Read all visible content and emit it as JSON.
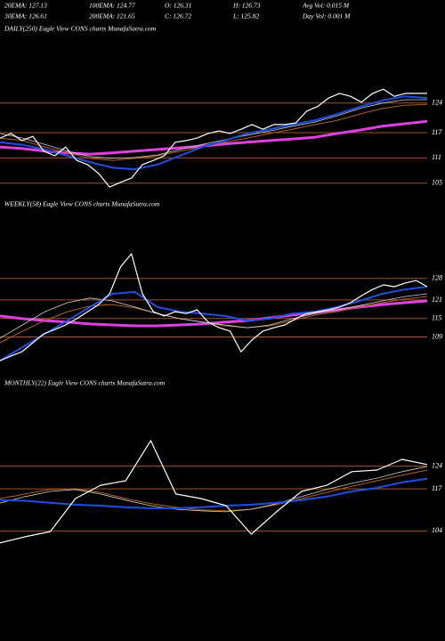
{
  "header": {
    "stats": [
      "20EMA: 127.13",
      "100EMA: 124.77",
      "O: 126.31",
      "H: 126.73",
      "Avg Vol: 0.015 M",
      "30EMA: 126.61",
      "200EMA: 121.65",
      "C: 126.72",
      "L: 125.82",
      "Day Vol: 0.001 M"
    ]
  },
  "chart_data": [
    {
      "type": "line",
      "title": "DAILY(250) Eagle  View  CONS charts MunafaSutra.com",
      "ylim": [
        102,
        140
      ],
      "yticks": [
        124,
        117,
        111,
        105
      ],
      "series": [
        {
          "color": "#e040e0",
          "values": [
            113.6,
            113.2,
            112.6,
            112.2,
            111.9,
            112.2,
            112.6,
            113.0,
            113.4,
            113.8,
            114.3,
            114.7,
            115.1,
            115.5,
            115.9,
            116.8,
            117.6,
            118.5,
            119.1,
            119.7
          ]
        },
        {
          "color": "#b06020",
          "values": [
            115.7,
            115.1,
            113.6,
            112.2,
            110.9,
            110.4,
            110.9,
            111.5,
            112.6,
            113.6,
            114.7,
            115.7,
            116.8,
            117.8,
            118.9,
            119.9,
            121.4,
            122.7,
            123.5,
            123.7
          ]
        },
        {
          "color": "#cccccc",
          "values": [
            116.8,
            115.7,
            114.2,
            112.6,
            111.3,
            110.9,
            111.1,
            111.7,
            113.0,
            114.2,
            115.3,
            116.4,
            117.4,
            118.5,
            119.5,
            121.0,
            122.7,
            124.0,
            124.8,
            124.8
          ]
        },
        {
          "color": "#1f4fe0",
          "values": [
            114.7,
            114.1,
            113.0,
            111.5,
            110.0,
            108.7,
            108.3,
            109.4,
            111.5,
            113.6,
            115.1,
            116.8,
            117.8,
            118.9,
            119.9,
            121.4,
            123.1,
            124.6,
            125.6,
            125.2
          ]
        },
        {
          "color": "#ffffff",
          "values": [
            115.7,
            116.8,
            115.1,
            116.1,
            112.6,
            111.5,
            113.6,
            110.4,
            109.4,
            107.3,
            104.1,
            105.2,
            106.2,
            109.4,
            110.4,
            111.5,
            114.7,
            115.1,
            115.7,
            116.8,
            117.4,
            116.8,
            117.8,
            118.9,
            117.8,
            118.9,
            118.9,
            119.3,
            122.1,
            123.2,
            125.2,
            126.3,
            125.6,
            124.2,
            126.3,
            127.3,
            125.6,
            126.3,
            126.3,
            126.3
          ]
        }
      ]
    },
    {
      "type": "line",
      "title": "WEEKLY(58) Eagle  View  CONS charts MunafaSutra.com",
      "ylim": [
        97,
        149
      ],
      "yticks": [
        128,
        121,
        115,
        109
      ],
      "series": [
        {
          "color": "#e040e0",
          "values": [
            115.8,
            114.9,
            114.3,
            113.8,
            113.2,
            112.9,
            112.6,
            112.6,
            112.9,
            113.2,
            113.8,
            114.3,
            115.2,
            116.1,
            116.9,
            117.8,
            118.7,
            119.5,
            120.1,
            120.7
          ]
        },
        {
          "color": "#b06020",
          "values": [
            107.1,
            110.9,
            114.3,
            117.2,
            119.0,
            119.5,
            118.4,
            116.6,
            114.9,
            113.8,
            112.6,
            112.0,
            112.6,
            114.3,
            116.1,
            117.2,
            118.7,
            120.1,
            121.3,
            122.1
          ]
        },
        {
          "color": "#cccccc",
          "values": [
            108.6,
            112.9,
            117.2,
            120.1,
            121.6,
            120.7,
            118.7,
            116.6,
            114.9,
            113.8,
            112.9,
            112.0,
            112.9,
            114.9,
            116.6,
            117.8,
            119.2,
            120.7,
            122.1,
            123.0
          ]
        },
        {
          "color": "#1f4fe0",
          "values": [
            101.3,
            105.7,
            110.0,
            114.3,
            118.7,
            123.0,
            123.6,
            118.7,
            117.2,
            116.6,
            115.8,
            114.3,
            114.9,
            116.6,
            117.2,
            118.7,
            120.7,
            123.0,
            124.4,
            125.3
          ]
        },
        {
          "color": "#ffffff",
          "values": [
            101.3,
            102.8,
            104.2,
            107.1,
            110.0,
            111.4,
            112.9,
            114.9,
            117.2,
            119.5,
            123.0,
            131.7,
            136.0,
            123.0,
            117.2,
            115.8,
            117.2,
            116.6,
            117.8,
            113.8,
            112.0,
            110.9,
            104.2,
            108.0,
            110.9,
            112.0,
            112.9,
            114.9,
            116.6,
            117.2,
            117.8,
            118.7,
            120.1,
            122.4,
            124.4,
            125.9,
            125.3,
            126.5,
            127.3,
            125.3
          ]
        }
      ]
    },
    {
      "type": "line",
      "title": "MONTHLY(22) Eagle  View  CONS charts MunafaSutra.com",
      "ylim": [
        92,
        147
      ],
      "yticks": [
        124,
        117,
        104
      ],
      "series": [
        {
          "color": "#b06020",
          "values": [
            114.0,
            115.4,
            116.8,
            117.0,
            115.9,
            114.0,
            112.4,
            111.3,
            110.5,
            110.2,
            110.7,
            112.1,
            114.0,
            115.9,
            117.8,
            119.5,
            121.2,
            122.8
          ]
        },
        {
          "color": "#cccccc",
          "values": [
            112.6,
            114.6,
            116.2,
            116.8,
            115.4,
            113.5,
            111.8,
            110.7,
            110.2,
            109.9,
            110.7,
            112.4,
            114.6,
            116.8,
            118.7,
            120.3,
            122.3,
            123.9
          ]
        },
        {
          "color": "#1f4fe0",
          "values": [
            113.5,
            113.3,
            112.7,
            112.1,
            111.8,
            111.3,
            111.0,
            111.0,
            111.3,
            111.8,
            112.1,
            112.7,
            113.5,
            114.6,
            116.2,
            117.3,
            119.0,
            120.1
          ]
        },
        {
          "color": "#ffffff",
          "values": [
            100.3,
            102.2,
            103.8,
            114.0,
            118.1,
            119.5,
            131.9,
            115.4,
            114.0,
            111.8,
            103.0,
            109.9,
            116.2,
            118.1,
            122.3,
            122.8,
            126.1,
            124.5
          ]
        }
      ]
    }
  ]
}
